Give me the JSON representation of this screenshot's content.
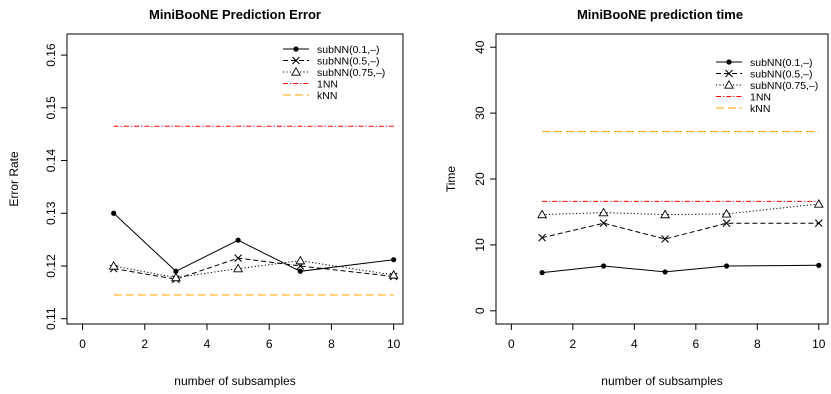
{
  "chart_data": [
    {
      "type": "line",
      "title": "MiniBooNE Prediction Error",
      "xlabel": "number of subsamples",
      "ylabel": "Error Rate",
      "xlim": [
        -0.5,
        10.3
      ],
      "ylim": [
        0.109,
        0.164
      ],
      "xticks": [
        "0",
        "2",
        "4",
        "6",
        "8",
        "10"
      ],
      "yticks": [
        "0.11",
        "0.12",
        "0.13",
        "0.14",
        "0.15",
        "0.16"
      ],
      "grid": false,
      "legend_position": "top-right",
      "x": [
        1,
        3,
        5,
        7,
        10
      ],
      "series": [
        {
          "name": "subNN(0.1,–)",
          "values": [
            0.13,
            0.119,
            0.1249,
            0.119,
            0.1212
          ],
          "color": "#000000",
          "style": "solid",
          "marker": "dot"
        },
        {
          "name": "subNN(0.5,–)",
          "values": [
            0.1195,
            0.1175,
            0.1215,
            0.12,
            0.118
          ],
          "color": "#000000",
          "style": "dashed",
          "marker": "cross"
        },
        {
          "name": "subNN(0.75,–)",
          "values": [
            0.12,
            0.1178,
            0.1195,
            0.121,
            0.1183
          ],
          "color": "#000000",
          "style": "dotted",
          "marker": "triangle"
        },
        {
          "name": "1NN",
          "values": [
            0.1465,
            0.1465
          ],
          "x": [
            1,
            10
          ],
          "color": "#ff0000",
          "style": "dotdash",
          "marker": "none"
        },
        {
          "name": "kNN",
          "values": [
            0.1145,
            0.1145
          ],
          "x": [
            1,
            10
          ],
          "color": "#ffa500",
          "style": "longdash",
          "marker": "none"
        }
      ]
    },
    {
      "type": "line",
      "title": "MiniBooNE prediction time",
      "xlabel": "number of subsamples",
      "ylabel": "Time",
      "xlim": [
        -0.5,
        10.3
      ],
      "ylim": [
        -2,
        42
      ],
      "xticks": [
        "0",
        "2",
        "4",
        "6",
        "8",
        "10"
      ],
      "yticks": [
        "0",
        "10",
        "20",
        "30",
        "40"
      ],
      "grid": false,
      "legend_position": "top-right",
      "x": [
        1,
        3,
        5,
        7,
        10
      ],
      "series": [
        {
          "name": "subNN(0.1,–)",
          "values": [
            5.8,
            6.8,
            5.9,
            6.8,
            6.9
          ],
          "color": "#000000",
          "style": "solid",
          "marker": "dot"
        },
        {
          "name": "subNN(0.5,–)",
          "values": [
            11.1,
            13.3,
            10.9,
            13.3,
            13.3
          ],
          "color": "#000000",
          "style": "dashed",
          "marker": "cross"
        },
        {
          "name": "subNN(0.75,–)",
          "values": [
            14.6,
            14.9,
            14.6,
            14.7,
            16.2
          ],
          "color": "#000000",
          "style": "dotted",
          "marker": "triangle"
        },
        {
          "name": "1NN",
          "values": [
            16.6,
            16.6
          ],
          "x": [
            1,
            10
          ],
          "color": "#ff0000",
          "style": "dotdash",
          "marker": "none"
        },
        {
          "name": "kNN",
          "values": [
            27.2,
            27.2
          ],
          "x": [
            1,
            10
          ],
          "color": "#ffa500",
          "style": "longdash",
          "marker": "none"
        }
      ]
    }
  ]
}
